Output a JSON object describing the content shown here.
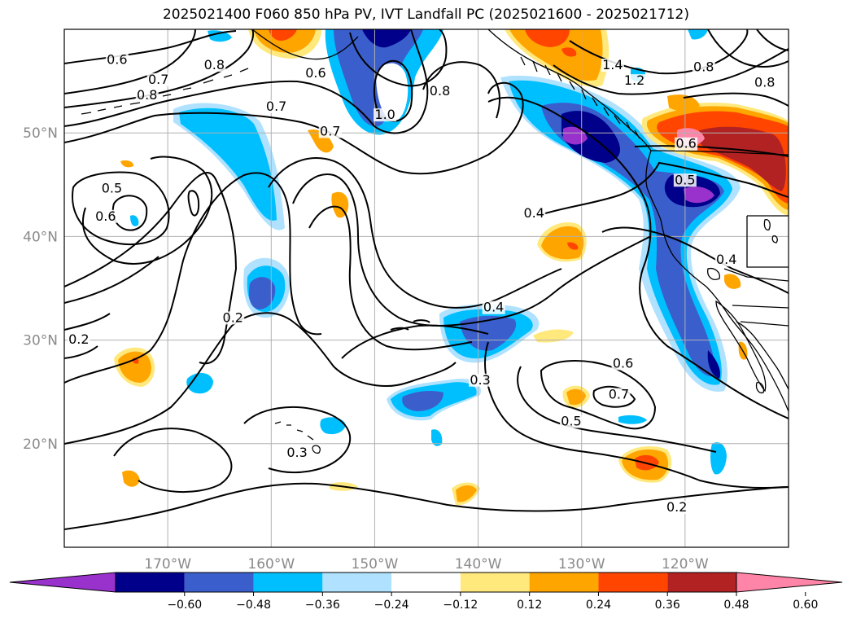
{
  "title": "2025021400 F060 850 hPa PV, IVT Landfall PC (2025021600 - 2025021712)",
  "map": {
    "projection": "lat-lon",
    "lon_range": [
      -180,
      -110
    ],
    "lat_range": [
      10,
      60
    ],
    "grid": true,
    "lon_ticks": [
      {
        "value": -170,
        "label": "170°W"
      },
      {
        "value": -160,
        "label": "160°W"
      },
      {
        "value": -150,
        "label": "150°W"
      },
      {
        "value": -140,
        "label": "140°W"
      },
      {
        "value": -130,
        "label": "130°W"
      },
      {
        "value": -120,
        "label": "120°W"
      }
    ],
    "lat_ticks": [
      {
        "value": 20,
        "label": "20°N"
      },
      {
        "value": 30,
        "label": "30°N"
      },
      {
        "value": 40,
        "label": "40°N"
      },
      {
        "value": 50,
        "label": "50°N"
      }
    ],
    "contour_labels": [
      {
        "text": "0.6",
        "lon": -174.9,
        "lat": 56.8
      },
      {
        "text": "0.8",
        "lon": -165.5,
        "lat": 56.3
      },
      {
        "text": "0.7",
        "lon": -170.9,
        "lat": 54.9
      },
      {
        "text": "0.8",
        "lon": -172.0,
        "lat": 53.4
      },
      {
        "text": "0.7",
        "lon": -159.5,
        "lat": 52.3
      },
      {
        "text": "0.7",
        "lon": -154.3,
        "lat": 49.9
      },
      {
        "text": "0.6",
        "lon": -155.7,
        "lat": 55.5
      },
      {
        "text": "1.0",
        "lon": -149.0,
        "lat": 51.5
      },
      {
        "text": "0.8",
        "lon": -143.7,
        "lat": 53.8
      },
      {
        "text": "0.5",
        "lon": -175.4,
        "lat": 44.4
      },
      {
        "text": "0.6",
        "lon": -176.0,
        "lat": 41.7
      },
      {
        "text": "0.4",
        "lon": -134.6,
        "lat": 42.0
      },
      {
        "text": "0.4",
        "lon": -138.5,
        "lat": 32.9
      },
      {
        "text": "0.2",
        "lon": -163.7,
        "lat": 31.9
      },
      {
        "text": "0.2",
        "lon": -178.6,
        "lat": 29.8
      },
      {
        "text": "0.3",
        "lon": -139.8,
        "lat": 25.9
      },
      {
        "text": "0.3",
        "lon": -157.5,
        "lat": 18.9
      },
      {
        "text": "0.6",
        "lon": -126.0,
        "lat": 27.5
      },
      {
        "text": "0.7",
        "lon": -126.4,
        "lat": 24.5
      },
      {
        "text": "0.5",
        "lon": -131.0,
        "lat": 21.9
      },
      {
        "text": "0.2",
        "lon": -120.8,
        "lat": 13.6
      },
      {
        "text": "0.8",
        "lon": -118.2,
        "lat": 56.1
      },
      {
        "text": "1.2",
        "lon": -124.9,
        "lat": 54.8
      },
      {
        "text": "1.4",
        "lon": -127.0,
        "lat": 56.3
      },
      {
        "text": "0.6",
        "lon": -119.9,
        "lat": 48.7
      },
      {
        "text": "0.5",
        "lon": -120.0,
        "lat": 45.2
      },
      {
        "text": "0.4",
        "lon": -116.0,
        "lat": 37.5
      },
      {
        "text": "0.8",
        "lon": -112.3,
        "lat": 54.6
      }
    ]
  },
  "colorbar": {
    "ticks": [
      "−0.60",
      "−0.48",
      "−0.36",
      "−0.24",
      "−0.12",
      "0.12",
      "0.24",
      "0.36",
      "0.48",
      "0.60"
    ],
    "colors": [
      "#9932cc",
      "#00008b",
      "#3a5fcd",
      "#00bfff",
      "#b0e2ff",
      "#ffffff",
      "#ffe87c",
      "#ffa500",
      "#ff4500",
      "#b22222",
      "#ff85a8"
    ]
  },
  "colors": {
    "frame": "#000000",
    "grid": "#b0b0b0",
    "contour": "#000000",
    "coast": "#000000"
  }
}
